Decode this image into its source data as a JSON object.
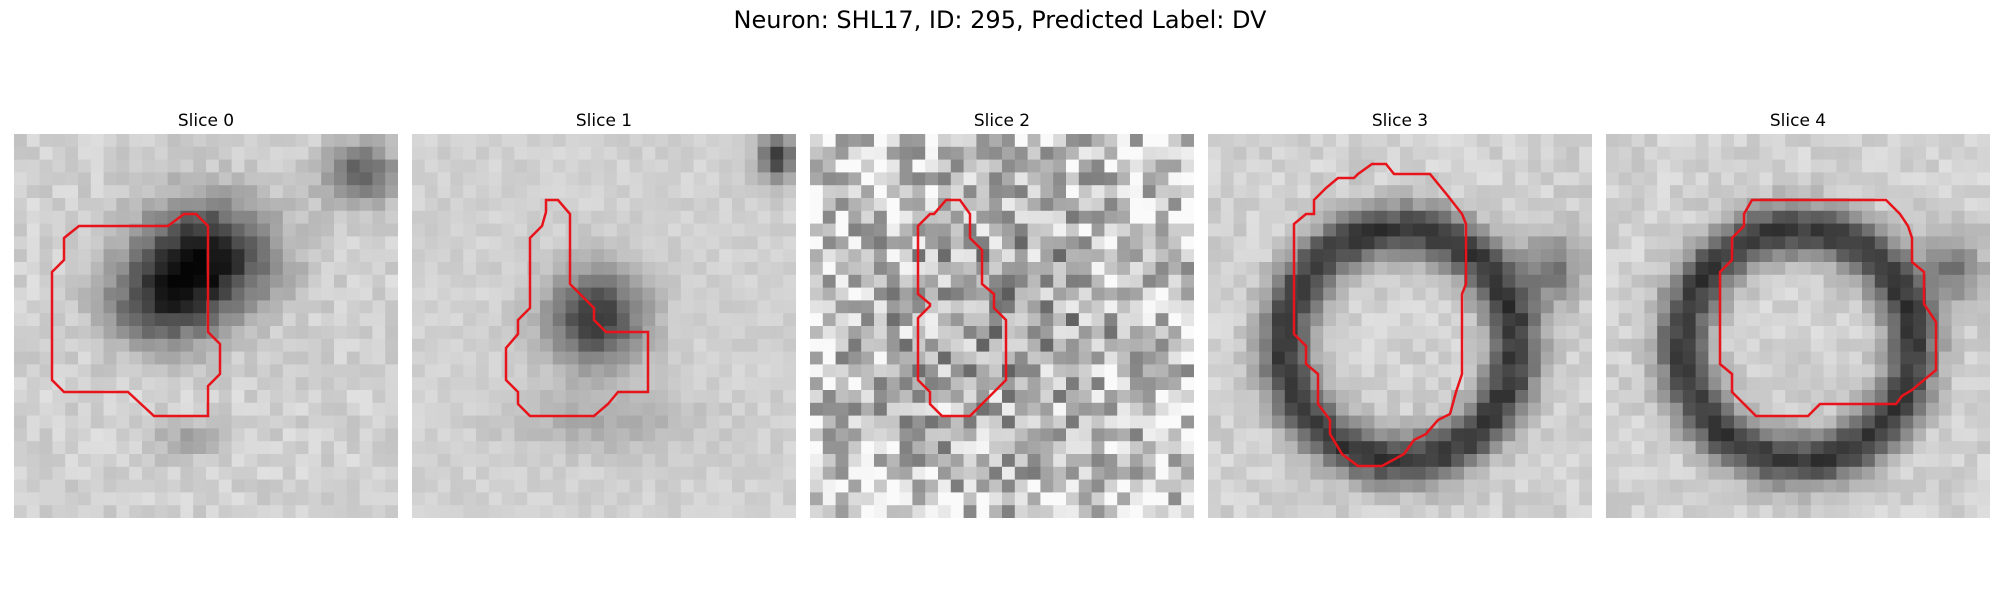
{
  "figure": {
    "title": "Neuron: SHL17, ID: 295, Predicted Label: DV",
    "contour_color": "#e8141b",
    "colormap": "grayscale",
    "image_grid": "30x30 pixels"
  },
  "slices": [
    {
      "title": "Slice 0",
      "pattern": "dark-blob",
      "contour_shape": "irregular blob, left-centre"
    },
    {
      "title": "Slice 1",
      "pattern": "dark-blob-soft",
      "contour_shape": "vertical blob, centre"
    },
    {
      "title": "Slice 2",
      "pattern": "noisy",
      "contour_shape": "narrow vertical loop, centre"
    },
    {
      "title": "Slice 3",
      "pattern": "dark-ring",
      "contour_shape": "large octagon, centre"
    },
    {
      "title": "Slice 4",
      "pattern": "dark-ring",
      "contour_shape": "large octagon, centre-right"
    }
  ]
}
